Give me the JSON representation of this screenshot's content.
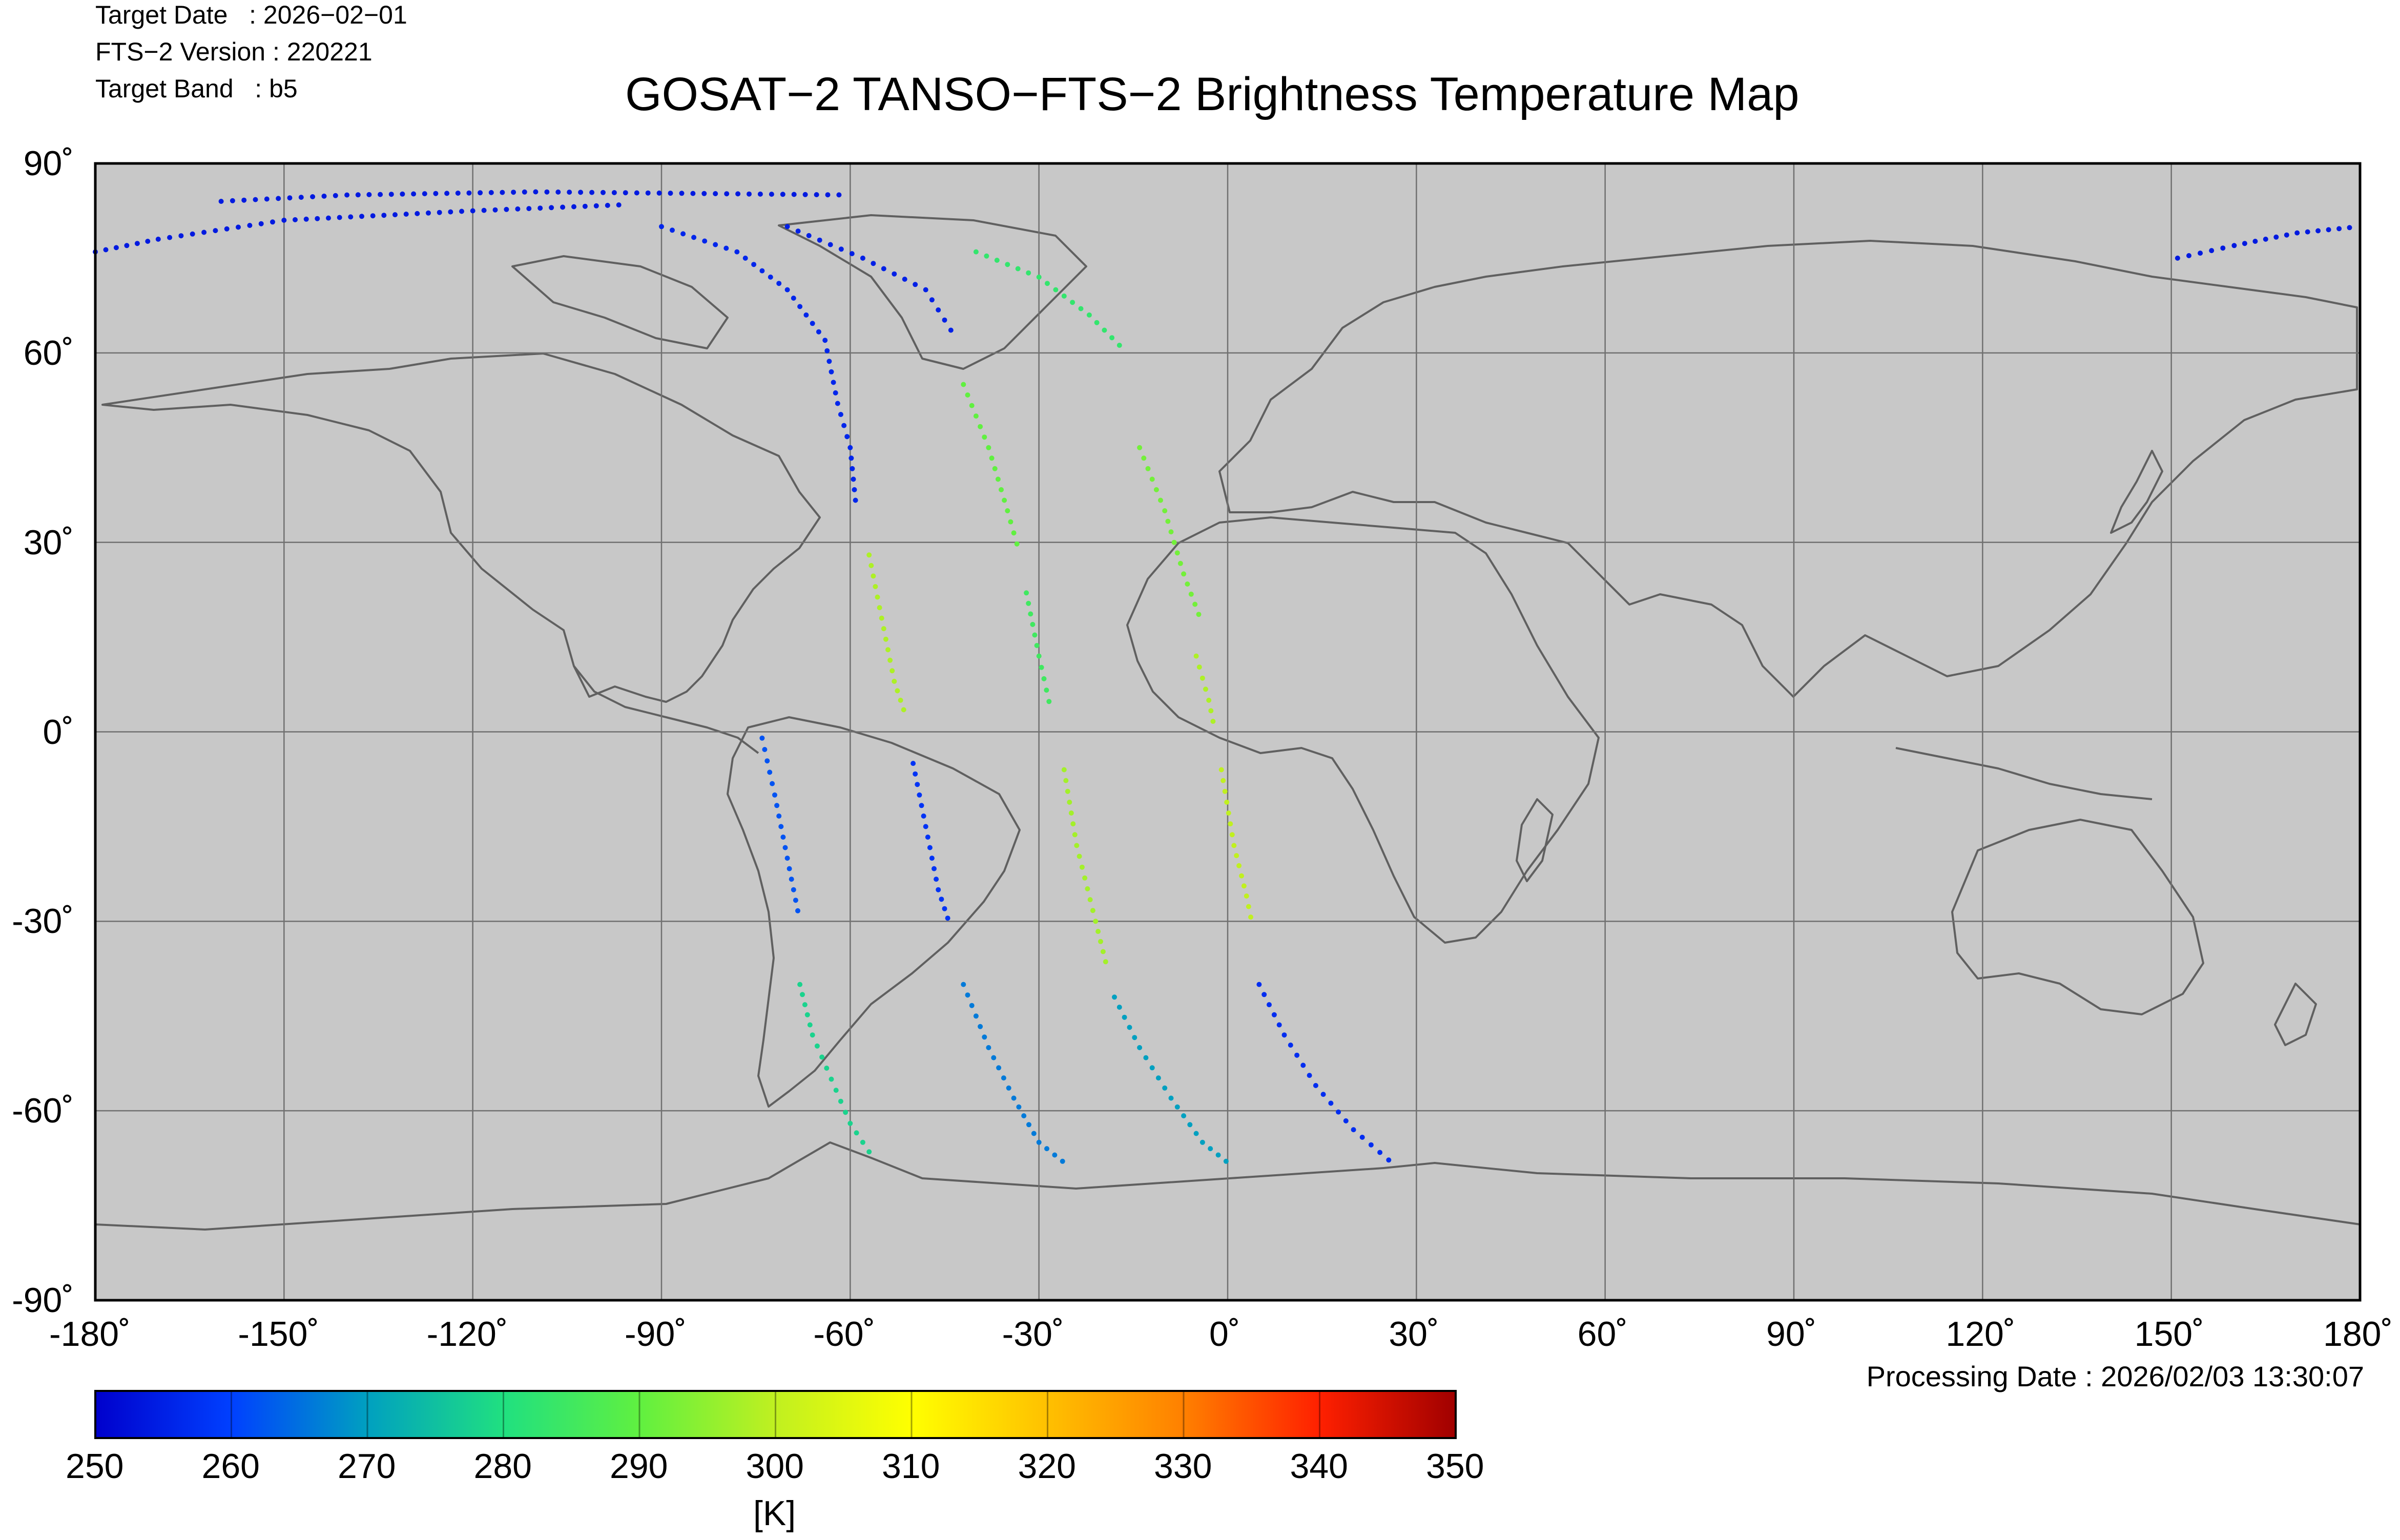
{
  "header": {
    "target_date": "Target Date   : 2026−02−01",
    "fts_version": "FTS−2 Version : 220221",
    "target_band": "Target Band   : b5",
    "title": "GOSAT−2 TANSO−FTS−2 Brightness Temperature Map"
  },
  "footer": {
    "processing_date": "Processing Date : 2026/02/03 13:30:07"
  },
  "map": {
    "projection": "equirectangular",
    "lon_range": [
      -180,
      180
    ],
    "lat_range": [
      -90,
      90
    ],
    "grid": true,
    "land_color": "#c8c8c8",
    "coast_color": "#606060",
    "lat_ticks": [
      {
        "value": 90,
        "label": "90˚"
      },
      {
        "value": 60,
        "label": "60˚"
      },
      {
        "value": 30,
        "label": "30˚"
      },
      {
        "value": 0,
        "label": "0˚"
      },
      {
        "value": -30,
        "label": "-30˚"
      },
      {
        "value": -60,
        "label": "-60˚"
      },
      {
        "value": -90,
        "label": "-90˚"
      }
    ],
    "lon_ticks": [
      {
        "value": -180,
        "label": "-180˚"
      },
      {
        "value": -150,
        "label": "-150˚"
      },
      {
        "value": -120,
        "label": "-120˚"
      },
      {
        "value": -90,
        "label": "-90˚"
      },
      {
        "value": -60,
        "label": "-60˚"
      },
      {
        "value": -30,
        "label": "-30˚"
      },
      {
        "value": 0,
        "label": "0˚"
      },
      {
        "value": 30,
        "label": "30˚"
      },
      {
        "value": 60,
        "label": "60˚"
      },
      {
        "value": 90,
        "label": "90˚"
      },
      {
        "value": 120,
        "label": "120˚"
      },
      {
        "value": 150,
        "label": "150˚"
      },
      {
        "value": 180,
        "label": "180˚"
      }
    ]
  },
  "colorbar": {
    "min": 250,
    "max": 350,
    "unit_label": "[K]",
    "tick_labels": [
      "250",
      "260",
      "270",
      "280",
      "290",
      "300",
      "310",
      "320",
      "330",
      "340",
      "350"
    ],
    "colors": [
      "#0000cc",
      "#0040ff",
      "#00a0c0",
      "#20e080",
      "#60f040",
      "#c0f020",
      "#ffff00",
      "#ffc000",
      "#ff8000",
      "#ff2000",
      "#a00000"
    ]
  },
  "chart_data": {
    "type": "scatter",
    "title": "GOSAT−2 TANSO−FTS−2 Brightness Temperature Map",
    "xlabel": "",
    "ylabel": "",
    "xlim": [
      -180,
      180
    ],
    "ylim": [
      -90,
      90
    ],
    "swaths": [
      {
        "path": [
          [
            -160,
            84
          ],
          [
            -140,
            85
          ],
          [
            -110,
            85.5
          ],
          [
            -60,
            85
          ]
        ],
        "value": 254
      },
      {
        "path": [
          [
            -180,
            76
          ],
          [
            -170,
            78
          ],
          [
            -150,
            81
          ],
          [
            -120,
            82.5
          ],
          [
            -95,
            83.5
          ]
        ],
        "value": 254
      },
      {
        "path": [
          [
            151,
            75
          ],
          [
            160,
            77
          ],
          [
            170,
            79
          ],
          [
            180,
            80
          ]
        ],
        "value": 254
      },
      {
        "path": [
          [
            -90,
            80
          ],
          [
            -78,
            76
          ],
          [
            -70,
            70
          ],
          [
            -64,
            62
          ],
          [
            -62,
            52
          ],
          [
            -60,
            45
          ],
          [
            -59,
            35
          ]
        ],
        "value": 256
      },
      {
        "path": [
          [
            -57,
            28
          ],
          [
            -55,
            18
          ],
          [
            -53,
            8
          ],
          [
            -51,
            2
          ]
        ],
        "value": 298
      },
      {
        "path": [
          [
            -74,
            -1
          ],
          [
            -72,
            -10
          ],
          [
            -70,
            -20
          ],
          [
            -68,
            -30
          ]
        ],
        "value": 262
      },
      {
        "path": [
          [
            -50,
            -5
          ],
          [
            -48,
            -15
          ],
          [
            -46,
            -25
          ],
          [
            -44,
            -31
          ]
        ],
        "value": 258
      },
      {
        "path": [
          [
            -68,
            -40
          ],
          [
            -66,
            -48
          ],
          [
            -63,
            -55
          ],
          [
            -60,
            -62
          ],
          [
            -56,
            -68
          ]
        ],
        "value": 278
      },
      {
        "path": [
          [
            -70,
            80
          ],
          [
            -58,
            75
          ],
          [
            -48,
            70
          ],
          [
            -43,
            62
          ]
        ],
        "value": 255
      },
      {
        "path": [
          [
            -42,
            55
          ],
          [
            -38,
            45
          ],
          [
            -35,
            35
          ],
          [
            -33,
            28
          ]
        ],
        "value": 290
      },
      {
        "path": [
          [
            -32,
            22
          ],
          [
            -30,
            12
          ],
          [
            -28,
            3
          ]
        ],
        "value": 285
      },
      {
        "path": [
          [
            -26,
            -6
          ],
          [
            -24,
            -18
          ],
          [
            -21,
            -30
          ],
          [
            -19,
            -38
          ]
        ],
        "value": 297
      },
      {
        "path": [
          [
            -42,
            -40
          ],
          [
            -38,
            -50
          ],
          [
            -34,
            -58
          ],
          [
            -30,
            -65
          ],
          [
            -25,
            -69
          ]
        ],
        "value": 266
      },
      {
        "path": [
          [
            -40,
            76
          ],
          [
            -30,
            72
          ],
          [
            -22,
            66
          ],
          [
            -16,
            60
          ]
        ],
        "value": 283
      },
      {
        "path": [
          [
            -14,
            45
          ],
          [
            -10,
            35
          ],
          [
            -7,
            25
          ],
          [
            -4,
            17
          ]
        ],
        "value": 292
      },
      {
        "path": [
          [
            -5,
            12
          ],
          [
            -3,
            5
          ],
          [
            -2,
            0
          ]
        ],
        "value": 298
      },
      {
        "path": [
          [
            -1,
            -6
          ],
          [
            1,
            -18
          ],
          [
            3,
            -26
          ],
          [
            4,
            -31
          ]
        ],
        "value": 300
      },
      {
        "path": [
          [
            -18,
            -42
          ],
          [
            -14,
            -50
          ],
          [
            -9,
            -58
          ],
          [
            -4,
            -65
          ],
          [
            1,
            -69
          ]
        ],
        "value": 270
      },
      {
        "path": [
          [
            5,
            -40
          ],
          [
            9,
            -48
          ],
          [
            14,
            -56
          ],
          [
            20,
            -63
          ],
          [
            27,
            -69
          ]
        ],
        "value": 257
      }
    ]
  }
}
